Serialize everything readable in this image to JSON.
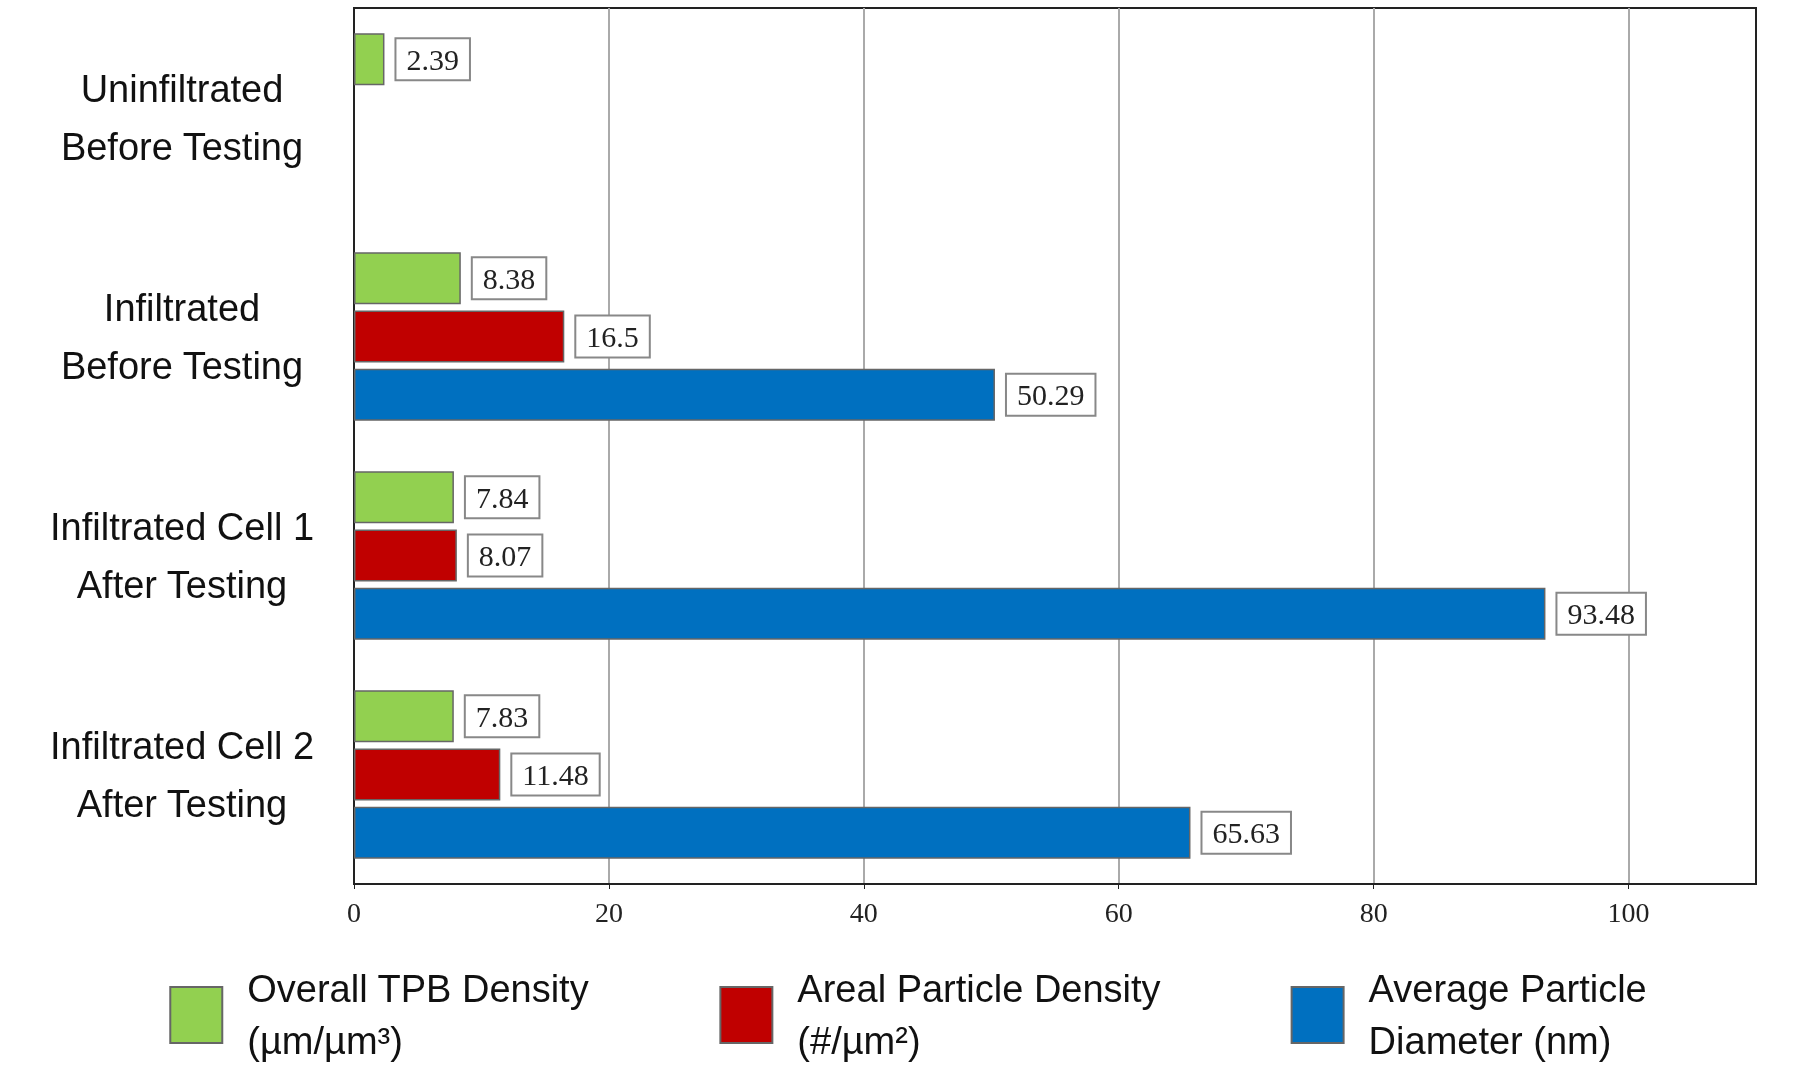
{
  "chart_data": {
    "type": "bar",
    "orientation": "horizontal",
    "categories": [
      "Uninfiltrated\nBefore Testing",
      "Infiltrated\nBefore Testing",
      "Infiltrated Cell 1\nAfter Testing",
      "Infiltrated Cell 2\nAfter Testing"
    ],
    "series": [
      {
        "name": "Overall TPB Density\n(µm/µm³)",
        "color": "#92d050",
        "values": [
          2.39,
          8.38,
          7.84,
          7.83
        ]
      },
      {
        "name": "Areal Particle Density\n(#/µm²)",
        "color": "#c00000",
        "values": [
          null,
          16.5,
          8.07,
          11.48
        ]
      },
      {
        "name": "Average Particle\nDiameter (nm)",
        "color": "#0070c0",
        "values": [
          null,
          50.29,
          93.48,
          65.63
        ]
      }
    ],
    "xlim": [
      0,
      110
    ],
    "xticks": [
      0,
      20,
      40,
      60,
      80,
      100
    ],
    "grid": "x",
    "legend": "bottom",
    "data_labels": true
  }
}
